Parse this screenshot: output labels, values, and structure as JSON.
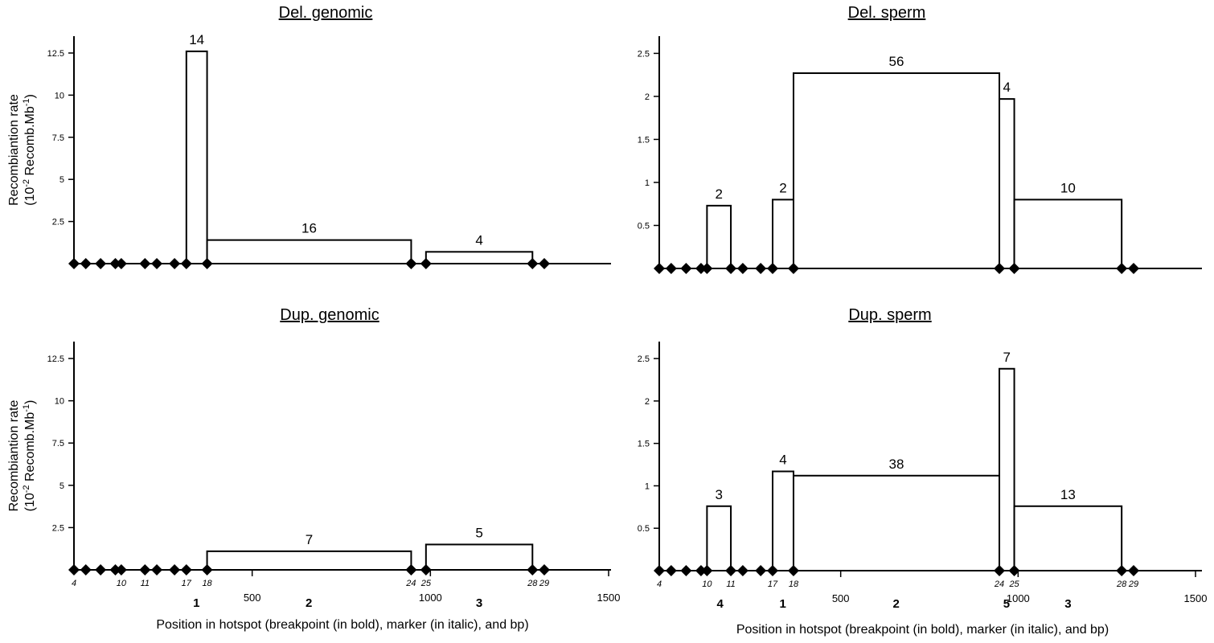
{
  "chart_data": [
    {
      "type": "bar",
      "title": "Del. genomic",
      "ylabel_line1": "Recombiantion rate",
      "ylabel_line2": "(10-2 Recomb.Mb-1)",
      "ylabel_line2_base": "(10",
      "ylabel_line2_sup1": "-2",
      "ylabel_line2_mid": " Recomb.Mb",
      "ylabel_line2_sup2": "-1",
      "ylabel_line2_end": ")",
      "yticks": [
        "2.5",
        "5",
        "7.5",
        "10",
        "12.5"
      ],
      "ylim": [
        0,
        13.5
      ],
      "xlim": [
        -20,
        1500
      ],
      "markers": [
        0,
        20,
        45,
        70,
        80,
        120,
        140,
        170,
        190,
        225,
        570,
        595,
        775,
        795
      ],
      "bars": [
        {
          "x0": 190,
          "x1": 225,
          "value": 12.6,
          "count": "14"
        },
        {
          "x0": 225,
          "x1": 570,
          "value": 1.4,
          "count": "16"
        },
        {
          "x0": 595,
          "x1": 775,
          "value": 0.7,
          "count": "4"
        }
      ]
    },
    {
      "type": "bar",
      "title": "Del. sperm",
      "yticks": [
        "0.5",
        "1",
        "1.5",
        "2",
        "2.5"
      ],
      "ylim": [
        0,
        2.7
      ],
      "xlim": [
        -20,
        1500
      ],
      "markers": [
        0,
        20,
        45,
        70,
        80,
        120,
        140,
        170,
        190,
        225,
        570,
        595,
        775,
        795
      ],
      "bars": [
        {
          "x0": 80,
          "x1": 120,
          "value": 0.73,
          "count": "2"
        },
        {
          "x0": 190,
          "x1": 225,
          "value": 0.8,
          "count": "2"
        },
        {
          "x0": 225,
          "x1": 570,
          "value": 2.27,
          "count": "56"
        },
        {
          "x0": 570,
          "x1": 595,
          "value": 1.97,
          "count": "4"
        },
        {
          "x0": 595,
          "x1": 775,
          "value": 0.8,
          "count": "10"
        }
      ]
    },
    {
      "type": "bar",
      "title": "Dup. genomic",
      "ylabel_line1": "Recombiantion rate",
      "ylabel_line2": "(10-2 Recomb.Mb-1)",
      "ylabel_line2_base": "(10",
      "ylabel_line2_sup1": "-2",
      "ylabel_line2_mid": " Recomb.Mb",
      "ylabel_line2_sup2": "-1",
      "ylabel_line2_end": ")",
      "yticks": [
        "2.5",
        "5",
        "7.5",
        "10",
        "12.5"
      ],
      "ylim": [
        0,
        13.5
      ],
      "xlim": [
        -20,
        1500
      ],
      "xticks": [
        "500",
        "1000",
        "1500"
      ],
      "xlabel": "Position in hotspot (breakpoint (in bold), marker (in italic), and bp)",
      "markers": [
        0,
        20,
        45,
        70,
        80,
        120,
        140,
        170,
        190,
        225,
        570,
        595,
        775,
        795
      ],
      "marker_labels": [
        {
          "x": 0,
          "label": "4"
        },
        {
          "x": 80,
          "label": "10"
        },
        {
          "x": 120,
          "label": "11"
        },
        {
          "x": 190,
          "label": "17"
        },
        {
          "x": 225,
          "label": "18"
        },
        {
          "x": 570,
          "label": "24"
        },
        {
          "x": 595,
          "label": "25"
        },
        {
          "x": 775,
          "label": "28"
        },
        {
          "x": 795,
          "label": "29"
        }
      ],
      "breakpoints": [
        {
          "x": 207,
          "label": "1"
        },
        {
          "x": 397,
          "label": "2"
        },
        {
          "x": 685,
          "label": "3"
        }
      ],
      "bars": [
        {
          "x0": 225,
          "x1": 570,
          "value": 1.1,
          "count": "7"
        },
        {
          "x0": 595,
          "x1": 775,
          "value": 1.5,
          "count": "5"
        }
      ]
    },
    {
      "type": "bar",
      "title": "Dup. sperm",
      "yticks": [
        "0.5",
        "1",
        "1.5",
        "2",
        "2.5"
      ],
      "ylim": [
        0,
        2.7
      ],
      "xlim": [
        -20,
        1500
      ],
      "xticks": [
        "500",
        "1000",
        "1500"
      ],
      "xlabel": "Position in hotspot (breakpoint (in bold), marker (in italic), and bp)",
      "markers": [
        0,
        20,
        45,
        70,
        80,
        120,
        140,
        170,
        190,
        225,
        570,
        595,
        775,
        795
      ],
      "marker_labels": [
        {
          "x": 0,
          "label": "4"
        },
        {
          "x": 80,
          "label": "10"
        },
        {
          "x": 120,
          "label": "11"
        },
        {
          "x": 190,
          "label": "17"
        },
        {
          "x": 225,
          "label": "18"
        },
        {
          "x": 570,
          "label": "24"
        },
        {
          "x": 595,
          "label": "25"
        },
        {
          "x": 775,
          "label": "28"
        },
        {
          "x": 795,
          "label": "29"
        }
      ],
      "breakpoints": [
        {
          "x": 102,
          "label": "4"
        },
        {
          "x": 207,
          "label": "1"
        },
        {
          "x": 397,
          "label": "2"
        },
        {
          "x": 582,
          "label": "5"
        },
        {
          "x": 685,
          "label": "3"
        }
      ],
      "bars": [
        {
          "x0": 80,
          "x1": 120,
          "value": 0.76,
          "count": "3"
        },
        {
          "x0": 190,
          "x1": 225,
          "value": 1.17,
          "count": "4"
        },
        {
          "x0": 225,
          "x1": 570,
          "value": 1.12,
          "count": "38"
        },
        {
          "x0": 570,
          "x1": 595,
          "value": 2.38,
          "count": "7"
        },
        {
          "x0": 595,
          "x1": 775,
          "value": 0.76,
          "count": "13"
        }
      ]
    }
  ]
}
